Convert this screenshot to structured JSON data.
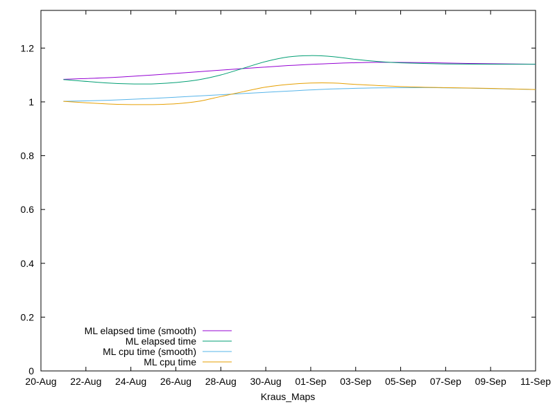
{
  "chart_data": {
    "type": "line",
    "title": "",
    "xlabel": "Kraus_Maps",
    "ylabel": "",
    "x_ticks": [
      "20-Aug",
      "22-Aug",
      "24-Aug",
      "26-Aug",
      "28-Aug",
      "30-Aug",
      "01-Sep",
      "03-Sep",
      "05-Sep",
      "07-Sep",
      "09-Sep",
      "11-Sep"
    ],
    "x_tick_dates": [
      "2023-08-20",
      "2023-08-22",
      "2023-08-24",
      "2023-08-26",
      "2023-08-28",
      "2023-08-30",
      "2023-09-01",
      "2023-09-03",
      "2023-09-05",
      "2023-09-07",
      "2023-09-09",
      "2023-09-11"
    ],
    "y_ticks": [
      "0",
      "0.2",
      "0.4",
      "0.6",
      "0.8",
      "1",
      "1.2"
    ],
    "y_tick_values": [
      0,
      0.2,
      0.4,
      0.6,
      0.8,
      1.0,
      1.2
    ],
    "xlim": [
      "2023-08-20",
      "2023-09-11"
    ],
    "ylim": [
      0,
      1.34
    ],
    "grid": false,
    "legend_position": "bottom-left",
    "series": [
      {
        "name": "ML elapsed time (smooth)",
        "color": "#9400d3",
        "x": [
          "2023-08-21",
          "2023-08-23",
          "2023-08-25",
          "2023-08-27",
          "2023-08-29",
          "2023-08-31",
          "2023-09-02",
          "2023-09-04",
          "2023-09-06",
          "2023-09-08",
          "2023-09-11"
        ],
        "values": [
          1.084,
          1.09,
          1.1,
          1.112,
          1.124,
          1.135,
          1.143,
          1.147,
          1.146,
          1.143,
          1.14
        ]
      },
      {
        "name": "ML elapsed time",
        "color": "#009e73",
        "x": [
          "2023-08-21",
          "2023-08-23",
          "2023-08-24",
          "2023-08-25",
          "2023-08-26",
          "2023-08-27",
          "2023-08-28",
          "2023-08-29",
          "2023-08-30",
          "2023-08-31",
          "2023-09-01",
          "2023-09-02",
          "2023-09-03",
          "2023-09-04",
          "2023-09-05",
          "2023-09-07",
          "2023-09-09",
          "2023-09-11"
        ],
        "values": [
          1.083,
          1.07,
          1.067,
          1.067,
          1.072,
          1.082,
          1.1,
          1.125,
          1.15,
          1.167,
          1.172,
          1.168,
          1.158,
          1.15,
          1.145,
          1.141,
          1.14,
          1.14
        ]
      },
      {
        "name": "ML cpu time (smooth)",
        "color": "#56b4e9",
        "x": [
          "2023-08-21",
          "2023-08-23",
          "2023-08-25",
          "2023-08-27",
          "2023-08-29",
          "2023-08-31",
          "2023-09-02",
          "2023-09-04",
          "2023-09-06",
          "2023-09-08",
          "2023-09-11"
        ],
        "values": [
          1.002,
          1.006,
          1.013,
          1.022,
          1.031,
          1.04,
          1.048,
          1.052,
          1.053,
          1.051,
          1.046
        ]
      },
      {
        "name": "ML cpu time",
        "color": "#e69f00",
        "x": [
          "2023-08-21",
          "2023-08-23",
          "2023-08-24",
          "2023-08-25",
          "2023-08-26",
          "2023-08-27",
          "2023-08-28",
          "2023-08-29",
          "2023-08-30",
          "2023-08-31",
          "2023-09-01",
          "2023-09-02",
          "2023-09-03",
          "2023-09-05",
          "2023-09-07",
          "2023-09-09",
          "2023-09-11"
        ],
        "values": [
          1.002,
          0.992,
          0.99,
          0.99,
          0.993,
          1.002,
          1.02,
          1.038,
          1.055,
          1.065,
          1.07,
          1.07,
          1.065,
          1.057,
          1.053,
          1.05,
          1.046
        ]
      }
    ]
  }
}
